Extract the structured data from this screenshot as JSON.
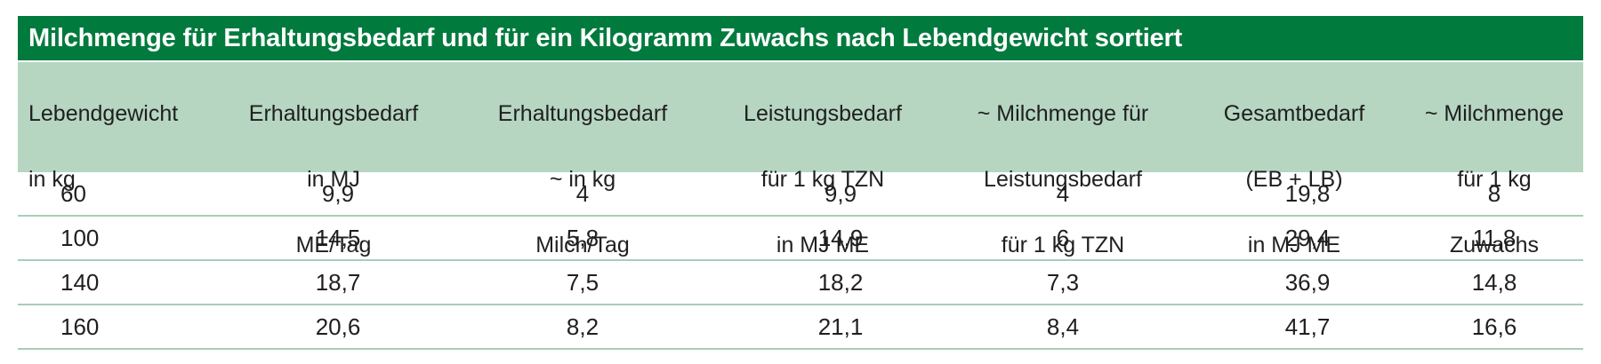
{
  "table": {
    "title": "Milchmenge für Erhaltungsbedarf und für ein Kilogramm Zuwachs nach Lebendgewicht sortiert",
    "headers": [
      [
        "Lebendgewicht",
        "in kg"
      ],
      [
        "Erhaltungsbedarf",
        "in MJ",
        "ME/Tag"
      ],
      [
        "Erhaltungsbedarf",
        "~ in kg",
        "Milch/Tag"
      ],
      [
        "Leistungsbedarf",
        "für 1 kg TZN",
        "in MJ ME"
      ],
      [
        "~ Milchmenge für",
        "Leistungsbedarf",
        "für 1 kg TZN"
      ],
      [
        "Gesamtbedarf",
        "(EB + LB)",
        "in MJ ME"
      ],
      [
        "~ Milchmenge",
        "für 1 kg",
        "Zuwachs"
      ]
    ],
    "rows": [
      [
        "60",
        "9,9",
        "4",
        "9,9",
        "4",
        "19,8",
        "8"
      ],
      [
        "100",
        "14,5",
        "5,8",
        "14,9",
        "6",
        "29,4",
        "11,8"
      ],
      [
        "140",
        "18,7",
        "7,5",
        "18,2",
        "7,3",
        "36,9",
        "14,8"
      ],
      [
        "160",
        "20,6",
        "8,2",
        "21,1",
        "8,4",
        "41,7",
        "16,6"
      ]
    ]
  },
  "colors": {
    "title_background": "#007a3d",
    "header_background": "#b6d6c2",
    "row_divider": "#a9cdb8"
  }
}
